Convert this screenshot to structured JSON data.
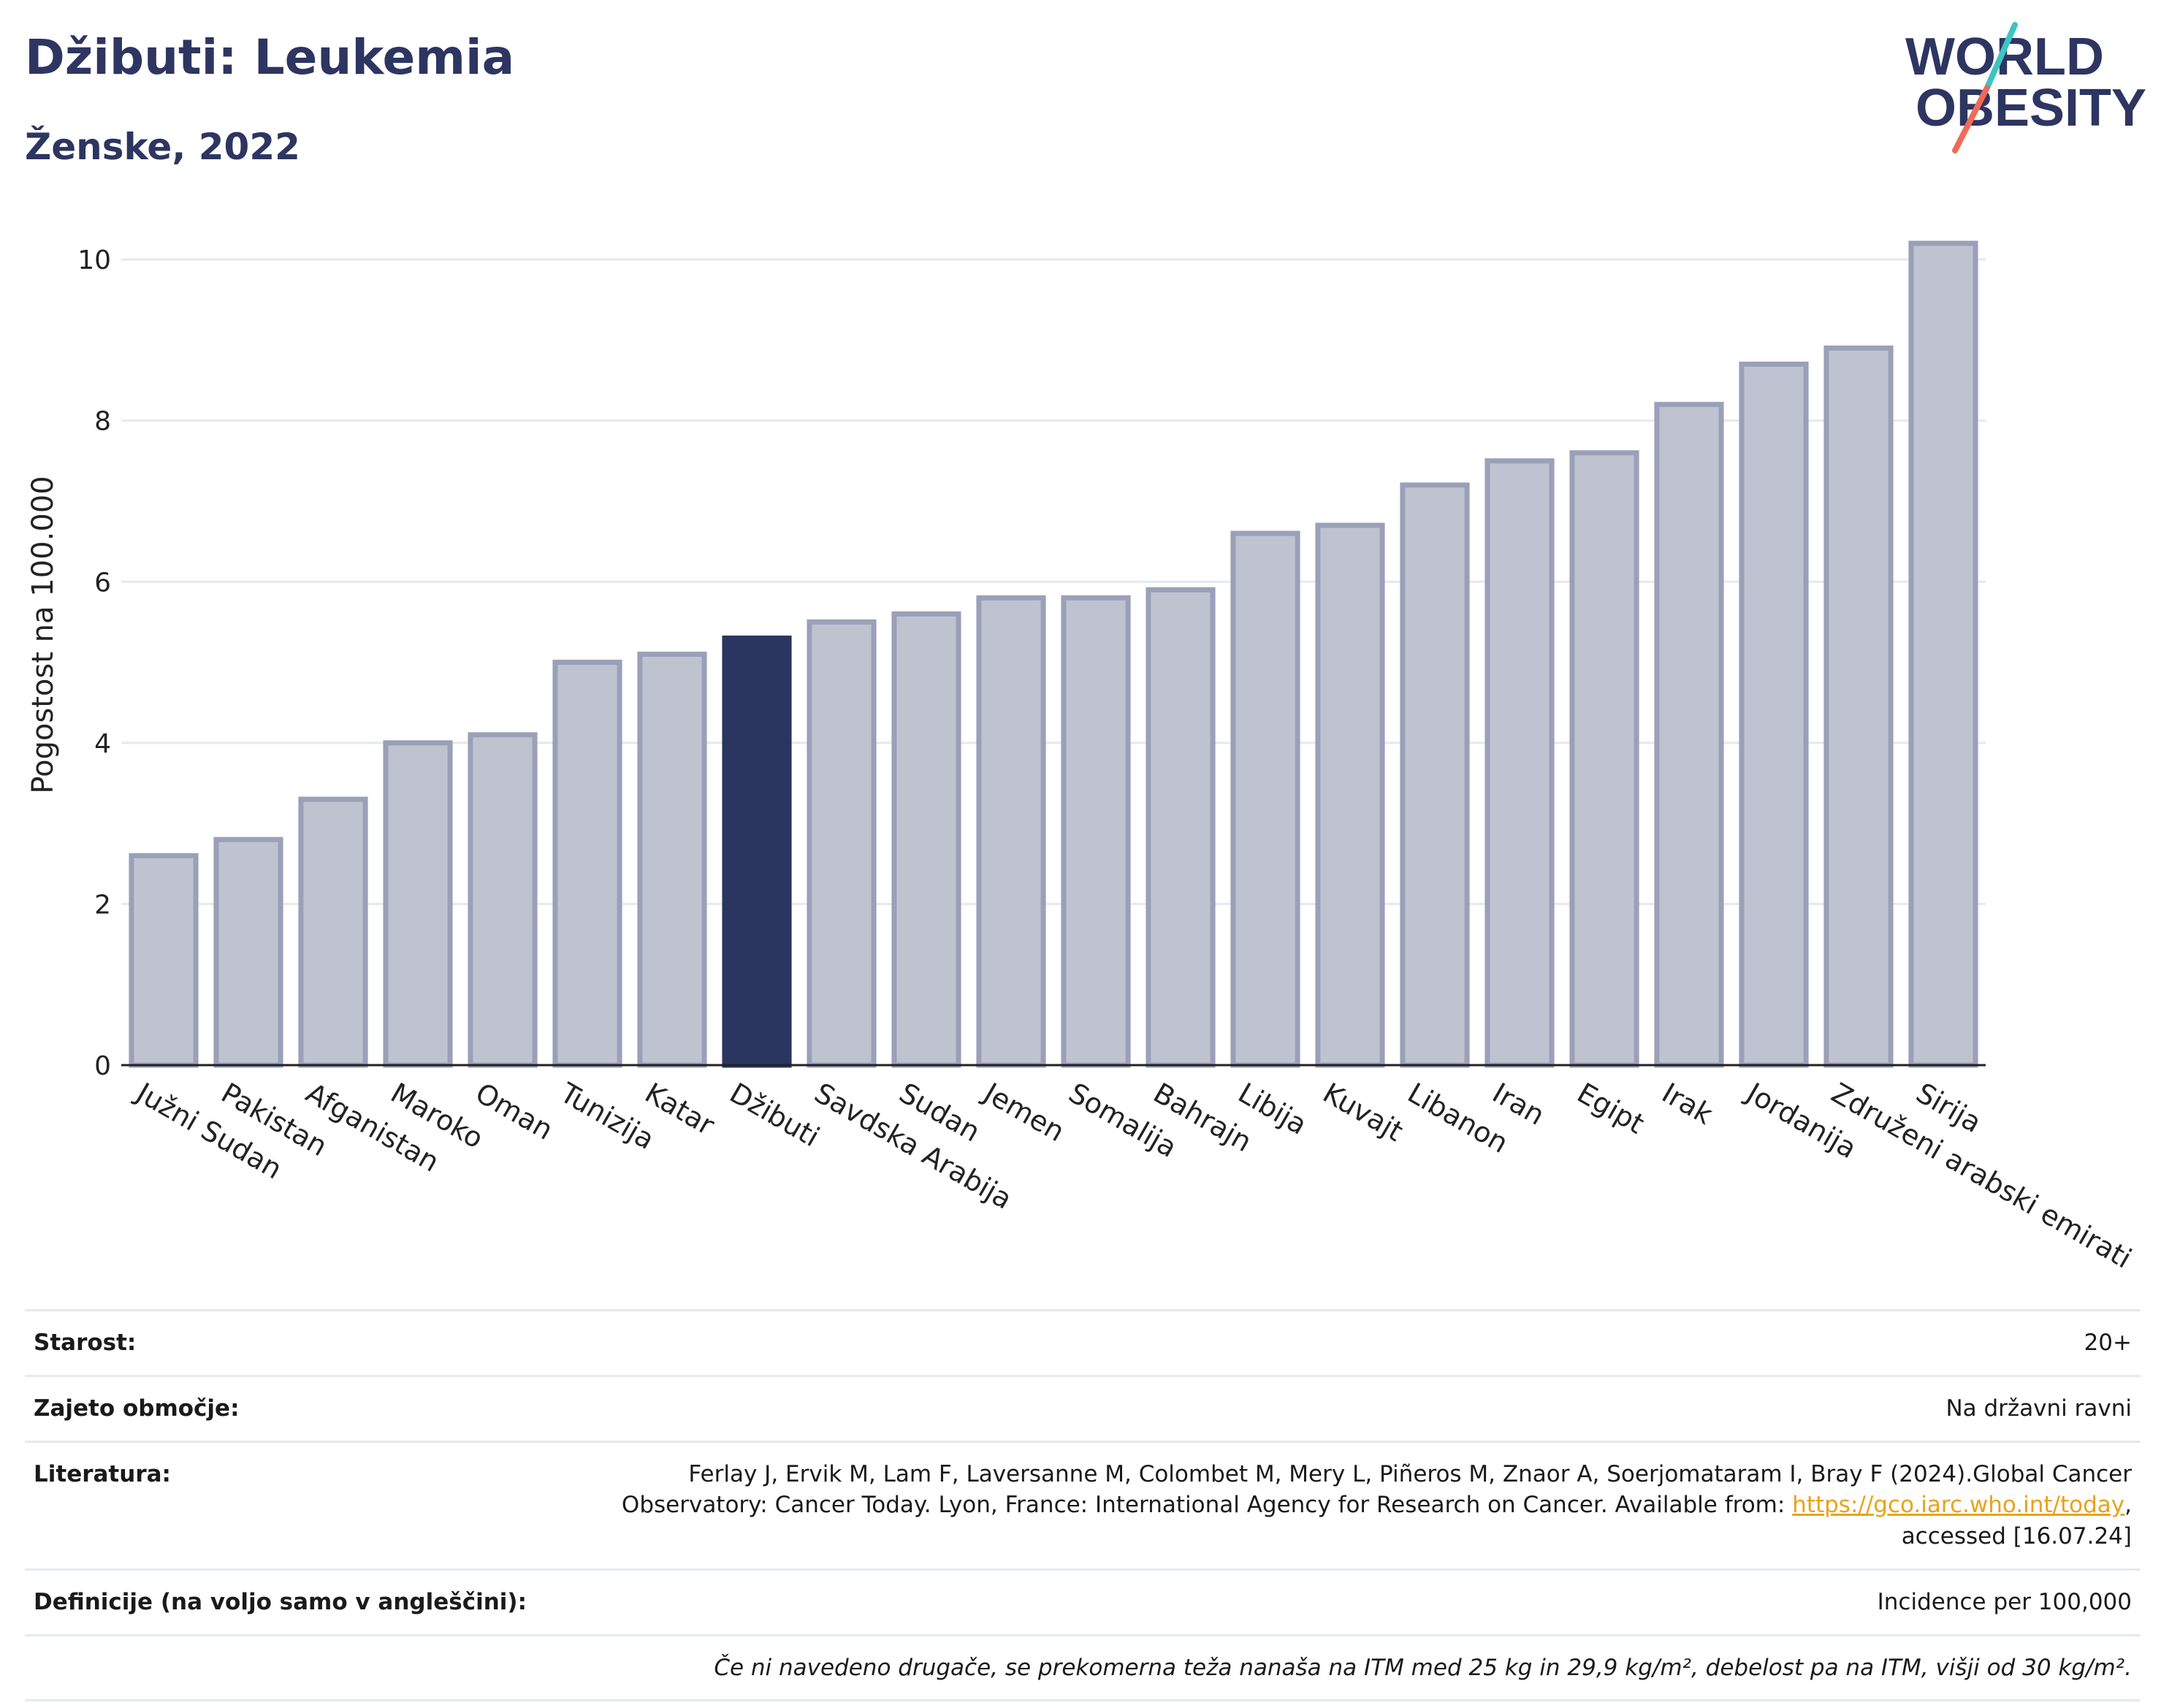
{
  "header": {
    "title": "Džibuti: Leukemia",
    "subtitle": "Ženske, 2022"
  },
  "logo": {
    "line1": "WORLD",
    "line2": "OBESITY",
    "slash_colors": [
      "#f06a5a",
      "#3ec3c3"
    ],
    "text_color": "#2d3561"
  },
  "chart_data": {
    "type": "bar",
    "ylabel": "Pogostost na 100.000",
    "ylim": [
      0,
      10.5
    ],
    "yticks": [
      0,
      2,
      4,
      6,
      8,
      10
    ],
    "grid": true,
    "categories": [
      "Južni Sudan",
      "Pakistan",
      "Afganistan",
      "Maroko",
      "Oman",
      "Tunizija",
      "Katar",
      "Džibuti",
      "Savdska Arabija",
      "Sudan",
      "Jemen",
      "Somalija",
      "Bahrajn",
      "Libija",
      "Kuvajt",
      "Libanon",
      "Iran",
      "Egipt",
      "Irak",
      "Jordanija",
      "Združeni arabski emirati",
      "Sirija"
    ],
    "values": [
      2.6,
      2.8,
      3.3,
      4.0,
      4.1,
      5.0,
      5.1,
      5.3,
      5.5,
      5.6,
      5.8,
      5.8,
      5.9,
      6.6,
      6.7,
      7.2,
      7.5,
      7.6,
      8.2,
      8.7,
      8.9,
      10.2
    ],
    "highlight": "Džibuti",
    "colors": {
      "bar": "#bfc3d0",
      "bar_outline": "#9aa0b8",
      "highlight": "#2b3660",
      "grid": "#e6e8ef",
      "axis": "#222222"
    }
  },
  "info": {
    "age_label": "Starost:",
    "age_value": "20+",
    "coverage_label": "Zajeto območje:",
    "coverage_value": "Na državni ravni",
    "references_label": "Literatura:",
    "references_text_1": "Ferlay J, Ervik M, Lam F, Laversanne M, Colombet M, Mery L, Piñeros M, Znaor A, Soerjomataram I, Bray F (2024).Global Cancer Observatory: Cancer Today. Lyon, France: International Agency for Research on Cancer. Available from: ",
    "references_link": "https://gco.iarc.who.int/today",
    "references_text_2": ", accessed [16.07.24]",
    "definitions_label": "Definicije (na voljo samo v angleščini):",
    "definitions_value": "Incidence per 100,000",
    "footnote": "Če ni navedeno drugače, se prekomerna teža nanaša na ITM med 25 kg in 29,9 kg/m², debelost pa na ITM, višji od 30 kg/m²."
  }
}
